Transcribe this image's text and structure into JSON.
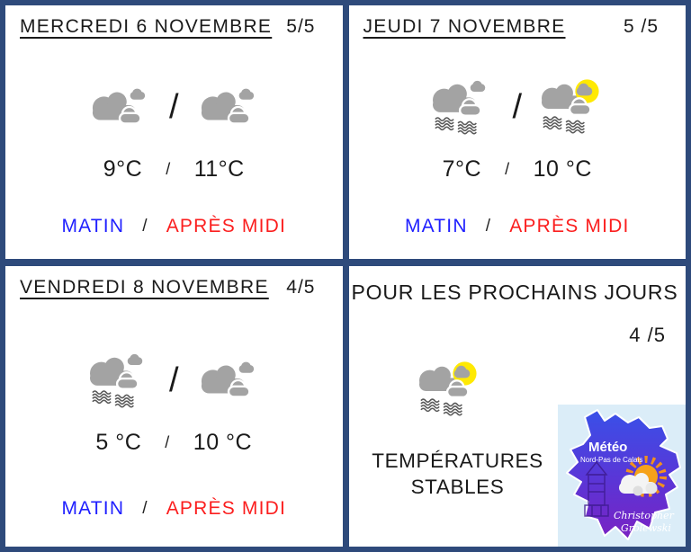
{
  "colors": {
    "border": "#2e4a7b",
    "morning_label": "#1f1fff",
    "afternoon_label": "#fb1e1e",
    "cloud": "#a3a3a3",
    "sun": "#ffe903",
    "fog": "#5a5a5a",
    "logo_blue": "#3950e8",
    "logo_purple": "#7a22c3"
  },
  "cards": [
    {
      "day": "mercredi",
      "title": "MERCREDI 6 NOVEMBRE",
      "rating": "5/5",
      "separator": "/",
      "morning": {
        "icon": "clouds",
        "temp": "9°C",
        "label": "MATIN"
      },
      "afternoon": {
        "icon": "clouds",
        "temp": "11°C",
        "label": "APRÈS MIDI"
      }
    },
    {
      "day": "jeudi",
      "title": "JEUDI 7 NOVEMBRE",
      "rating": "5 /5",
      "separator": "/",
      "morning": {
        "icon": "clouds-fog",
        "temp": "7°C",
        "label": "MATIN"
      },
      "afternoon": {
        "icon": "sun-clouds-fog",
        "temp": "10 °C",
        "label": "APRÈS MIDI"
      }
    },
    {
      "day": "vendredi",
      "title": "VENDREDI 8 NOVEMBRE",
      "rating": "4/5",
      "separator": "/",
      "morning": {
        "icon": "clouds-fog",
        "temp": "5 °C",
        "label": "MATIN"
      },
      "afternoon": {
        "icon": "clouds",
        "temp": "10 °C",
        "label": "APRÈS MIDI"
      }
    }
  ],
  "outlook": {
    "title": "POUR LES PROCHAINS JOURS",
    "rating": "4 /5",
    "icon": "sun-clouds-fog",
    "message_line1": "TEMPÉRATURES",
    "message_line2": "STABLES",
    "logo": {
      "brand": "Météo",
      "region": "Nord-Pas de Calais",
      "author_first_name": "Christopher",
      "author_last_name": "Grolewski"
    }
  }
}
